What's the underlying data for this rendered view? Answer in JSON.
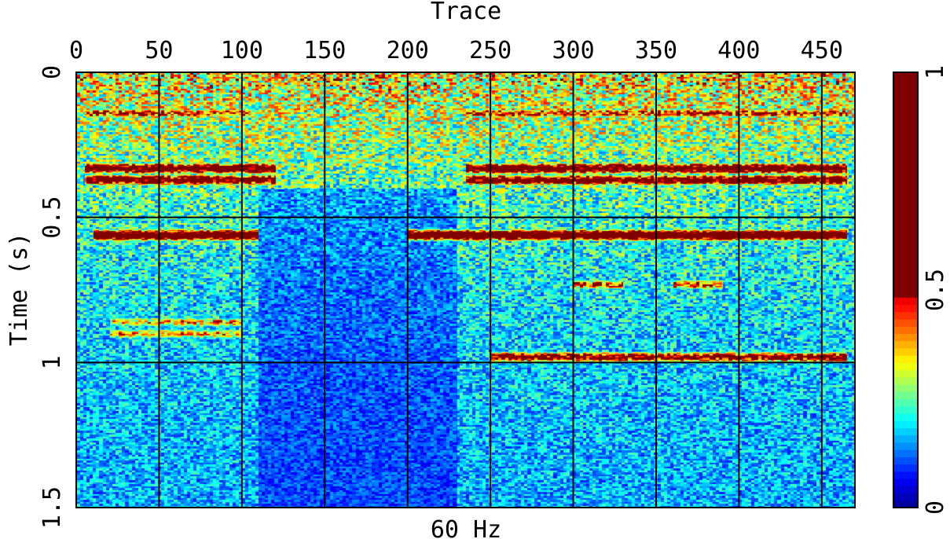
{
  "chart_data": {
    "type": "heatmap",
    "title": "Trace",
    "xlabel": "60 Hz",
    "ylabel": "Time (s)",
    "xlim": [
      0,
      470
    ],
    "ylim": [
      1.5,
      0
    ],
    "x_ticks": [
      "0",
      "50",
      "100",
      "150",
      "200",
      "250",
      "300",
      "350",
      "400",
      "450"
    ],
    "y_ticks": [
      "0",
      "0.5",
      "1",
      "1.5"
    ],
    "colorbar": {
      "range": [
        0,
        1
      ],
      "ticks": [
        "0",
        "0.5",
        "1"
      ],
      "colormap": "jet"
    },
    "grid": true,
    "reflector_bands": [
      {
        "time": 0.14,
        "x_ranges": [
          [
            5,
            105
          ],
          [
            235,
            465
          ]
        ],
        "amplitude": 0.55
      },
      {
        "time": 0.33,
        "x_ranges": [
          [
            5,
            120
          ],
          [
            235,
            465
          ]
        ],
        "amplitude": 0.85
      },
      {
        "time": 0.37,
        "x_ranges": [
          [
            5,
            120
          ],
          [
            235,
            465
          ]
        ],
        "amplitude": 0.8
      },
      {
        "time": 0.56,
        "x_ranges": [
          [
            10,
            110
          ],
          [
            200,
            465
          ]
        ],
        "amplitude": 0.95
      },
      {
        "time": 0.73,
        "x_ranges": [
          [
            300,
            330
          ],
          [
            360,
            390
          ]
        ],
        "amplitude": 0.55
      },
      {
        "time": 0.86,
        "x_ranges": [
          [
            20,
            100
          ]
        ],
        "amplitude": 0.45
      },
      {
        "time": 0.9,
        "x_ranges": [
          [
            20,
            100
          ]
        ],
        "amplitude": 0.45
      },
      {
        "time": 0.98,
        "x_ranges": [
          [
            250,
            465
          ]
        ],
        "amplitude": 0.7
      }
    ]
  },
  "colors": {
    "jet": [
      "#00008f",
      "#0000ff",
      "#0080ff",
      "#00ffff",
      "#80ff80",
      "#ffff00",
      "#ff8000",
      "#ff0000",
      "#800000"
    ]
  }
}
